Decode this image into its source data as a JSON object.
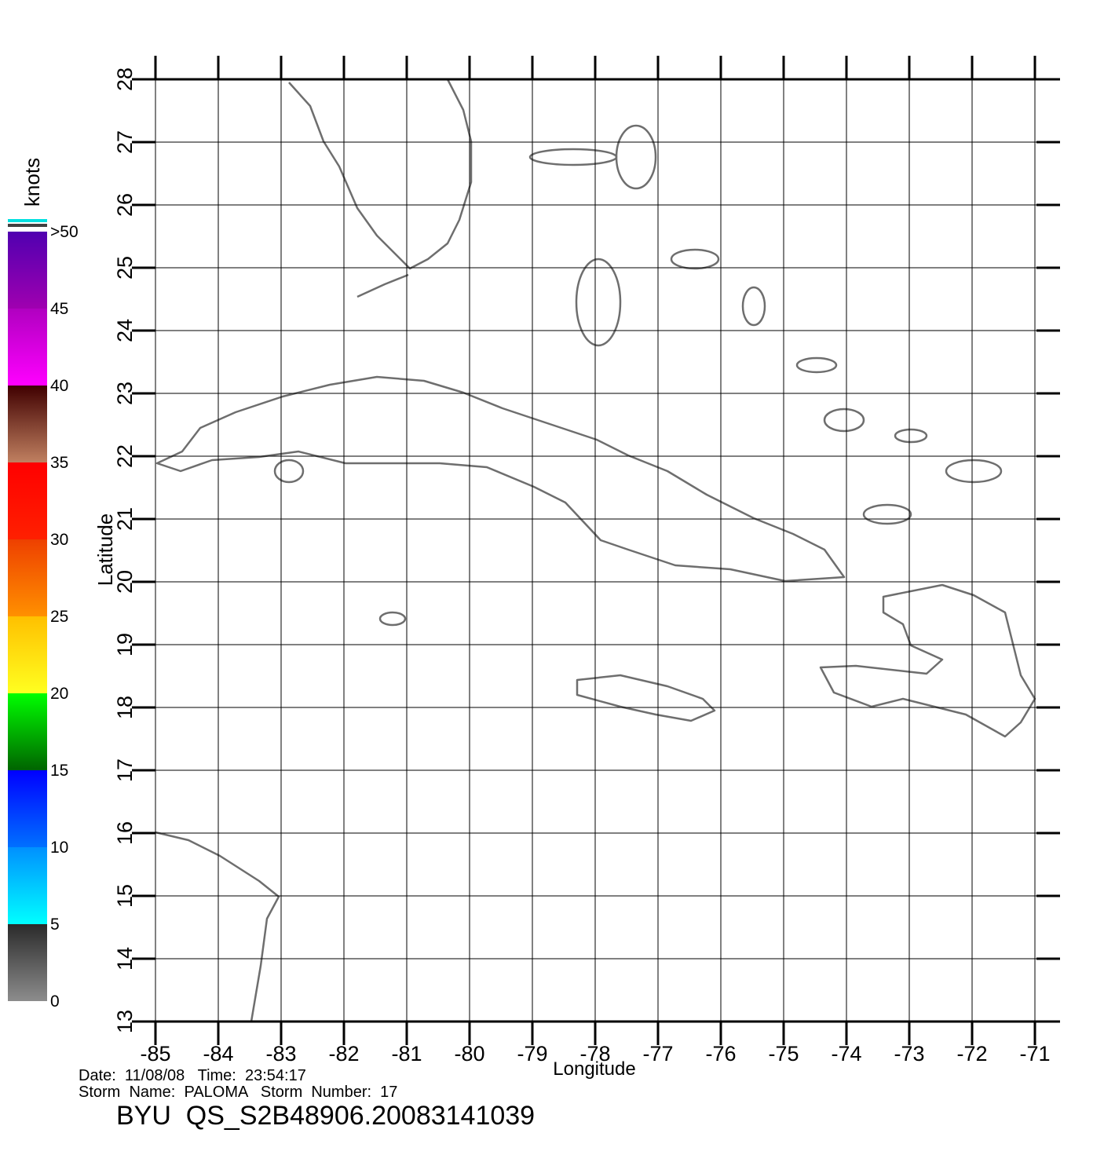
{
  "chart_data": {
    "type": "map",
    "title": "BYU  QS_S2B48906.20083141039",
    "date_line": "Date:  11/08/08   Time:  23:54:17",
    "storm_line": "Storm  Name:  PALOMA   Storm  Number:  17",
    "x_label": "Longitude",
    "y_label": "Latitude",
    "xlim": [
      -85,
      -70.6
    ],
    "ylim": [
      13,
      28
    ],
    "xticks": [
      -85,
      -84,
      -83,
      -82,
      -81,
      -80,
      -79,
      -78,
      -77,
      -76,
      -75,
      -74,
      -73,
      -72,
      -71
    ],
    "yticks": [
      13,
      14,
      15,
      16,
      17,
      18,
      19,
      20,
      21,
      22,
      23,
      24,
      25,
      26,
      27,
      28
    ],
    "grid": true,
    "colorbar": {
      "label": "knots",
      "lim": [
        0,
        50
      ],
      "ticks": [
        0,
        5,
        10,
        15,
        20,
        25,
        30,
        35,
        40,
        45,
        {
          "value": 50,
          "label": ">50"
        }
      ],
      "stops": [
        {
          "value": 0,
          "color": "#8c8c8c"
        },
        {
          "value": 5,
          "color": "#2a2a2a"
        },
        {
          "value": 5,
          "color": "#00ffff"
        },
        {
          "value": 10,
          "color": "#0090ff"
        },
        {
          "value": 10,
          "color": "#0070ff"
        },
        {
          "value": 15,
          "color": "#0000ff"
        },
        {
          "value": 15,
          "color": "#006400"
        },
        {
          "value": 20,
          "color": "#00ff00"
        },
        {
          "value": 20,
          "color": "#ffff20"
        },
        {
          "value": 25,
          "color": "#ffc000"
        },
        {
          "value": 25,
          "color": "#ff9000"
        },
        {
          "value": 30,
          "color": "#ee4000"
        },
        {
          "value": 30,
          "color": "#ff2000"
        },
        {
          "value": 35,
          "color": "#ff0000"
        },
        {
          "value": 35,
          "color": "#c08060"
        },
        {
          "value": 40,
          "color": "#400000"
        },
        {
          "value": 40,
          "color": "#ff00ff"
        },
        {
          "value": 45,
          "color": "#b000c0"
        },
        {
          "value": 45,
          "color": "#a000b0"
        },
        {
          "value": 50,
          "color": "#5000b0"
        }
      ]
    }
  }
}
